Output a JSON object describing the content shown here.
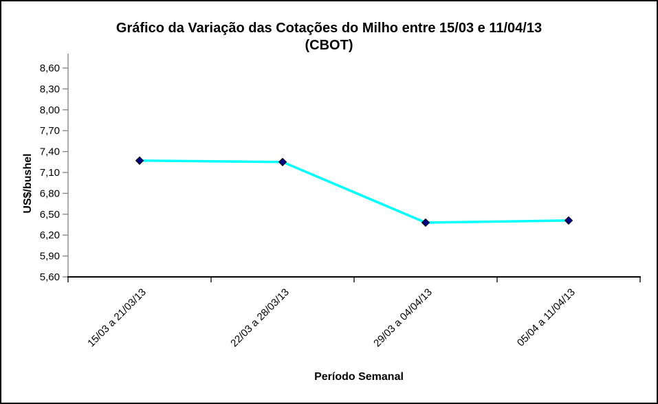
{
  "chart_data": {
    "type": "line",
    "title": "Gráfico da Variação das Cotações do Milho entre 15/03 e 11/04/13 (CBOT)",
    "title_lines": [
      "Gráfico da Variação das Cotações do Milho entre 15/03 e 11/04/13",
      "(CBOT)"
    ],
    "xlabel": "Período Semanal",
    "ylabel": "US$/bushel",
    "categories": [
      "15/03 a 21/03/13",
      "22/03 a 28/03/13",
      "29/03 a 04/04/13",
      "05/04 a 11/04/13"
    ],
    "values": [
      7.27,
      7.25,
      6.38,
      6.41
    ],
    "ylim": [
      5.6,
      8.6
    ],
    "ytick_step": 0.3,
    "ytick_labels": [
      "5,60",
      "5,90",
      "6,20",
      "6,50",
      "6,80",
      "7,10",
      "7,40",
      "7,70",
      "8,00",
      "8,30",
      "8,60"
    ],
    "grid": false,
    "legend": "none",
    "colors": {
      "line": "#00FFFF",
      "marker": "#000080",
      "marker_edge": "#000000",
      "y_axis": "#808080",
      "x_axis": "#000000",
      "text": "#000000",
      "background": "#FFFFFF",
      "border": "#000000"
    }
  }
}
